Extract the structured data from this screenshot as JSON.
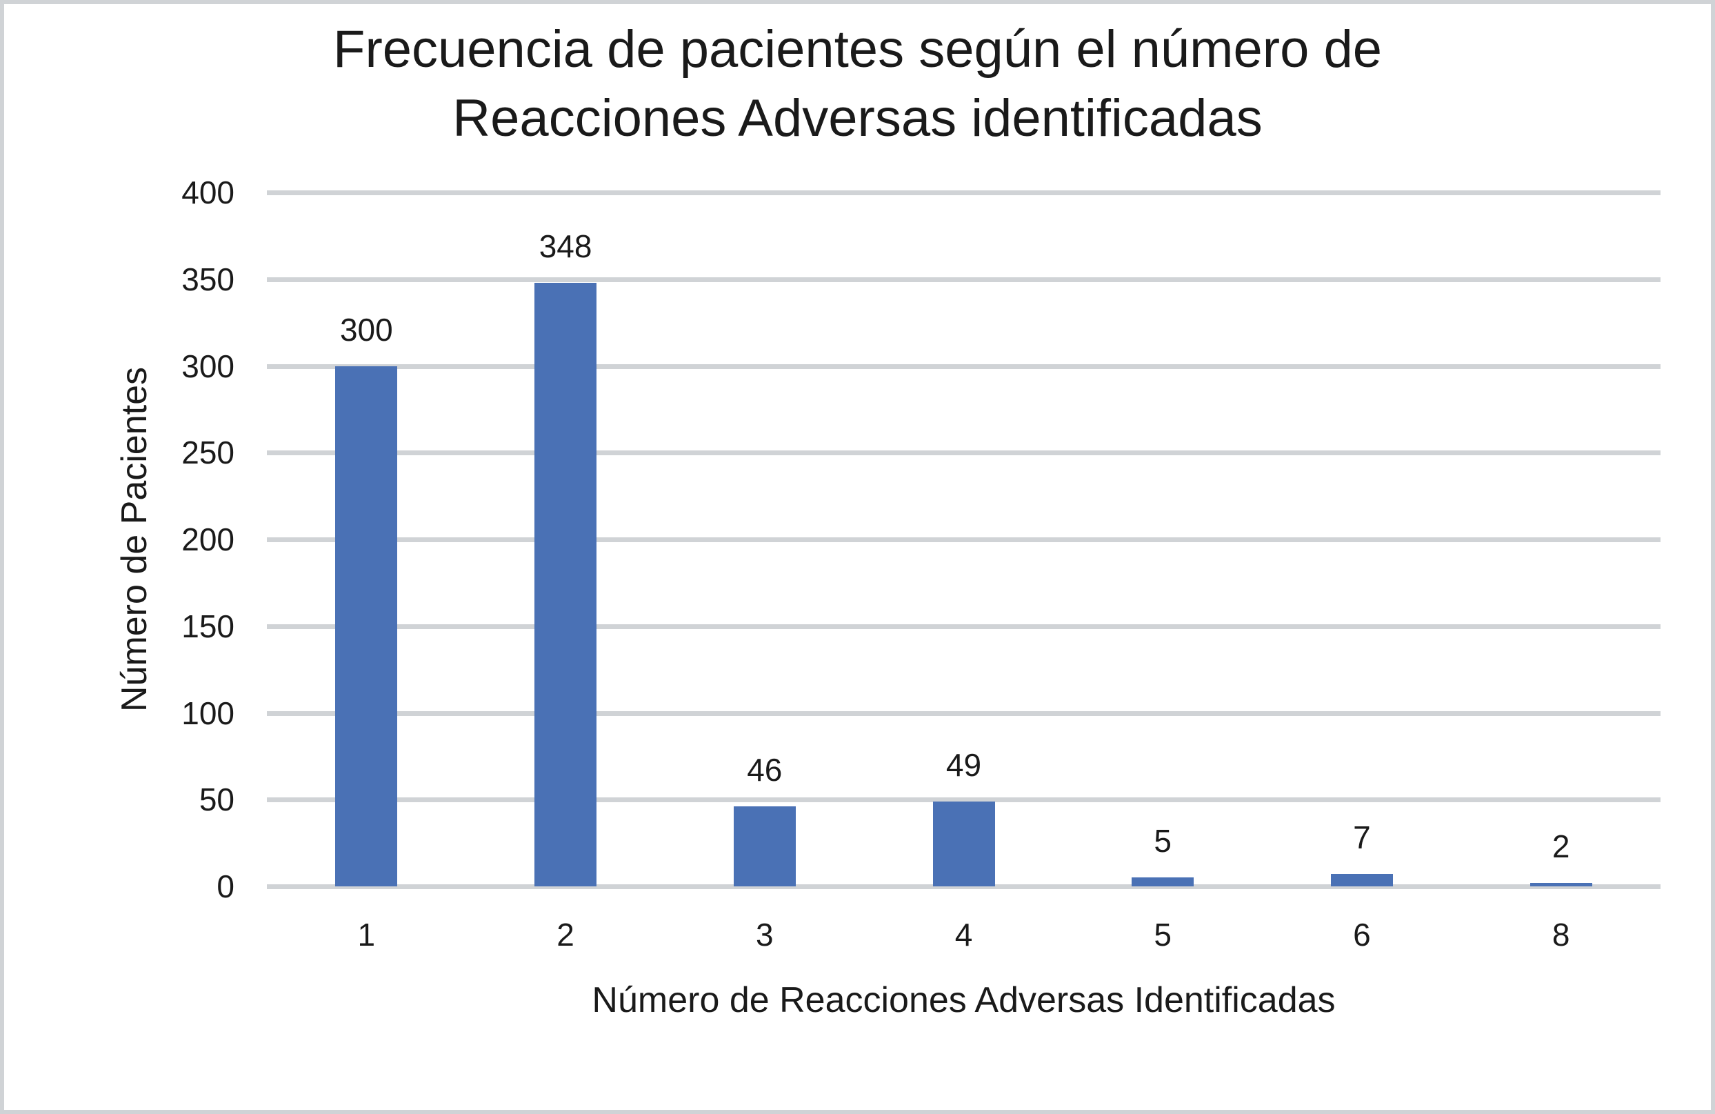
{
  "title": {
    "line1": "Frecuencia de pacientes según el número de",
    "line2": "Reacciones Adversas identificadas"
  },
  "axes": {
    "xlabel": "Número de Reacciones Adversas Identificadas",
    "ylabel": "Número de Pacientes",
    "yticks": [
      "0",
      "50",
      "100",
      "150",
      "200",
      "250",
      "300",
      "350",
      "400"
    ]
  },
  "colors": {
    "bar": "#4a71b5",
    "grid": "#d0d3d6",
    "border": "#d0d3d6"
  },
  "chart_data": {
    "type": "bar",
    "title": "Frecuencia de pacientes según el número de Reacciones Adversas identificadas",
    "xlabel": "Número de Reacciones Adversas Identificadas",
    "ylabel": "Número de Pacientes",
    "categories": [
      "1",
      "2",
      "3",
      "4",
      "5",
      "6",
      "8"
    ],
    "values": [
      300,
      348,
      46,
      49,
      5,
      7,
      2
    ],
    "data_labels": [
      "300",
      "348",
      "46",
      "49",
      "5",
      "7",
      "2"
    ],
    "ylim": [
      0,
      400
    ],
    "yticks": [
      0,
      50,
      100,
      150,
      200,
      250,
      300,
      350,
      400
    ],
    "grid": true,
    "legend": null
  }
}
